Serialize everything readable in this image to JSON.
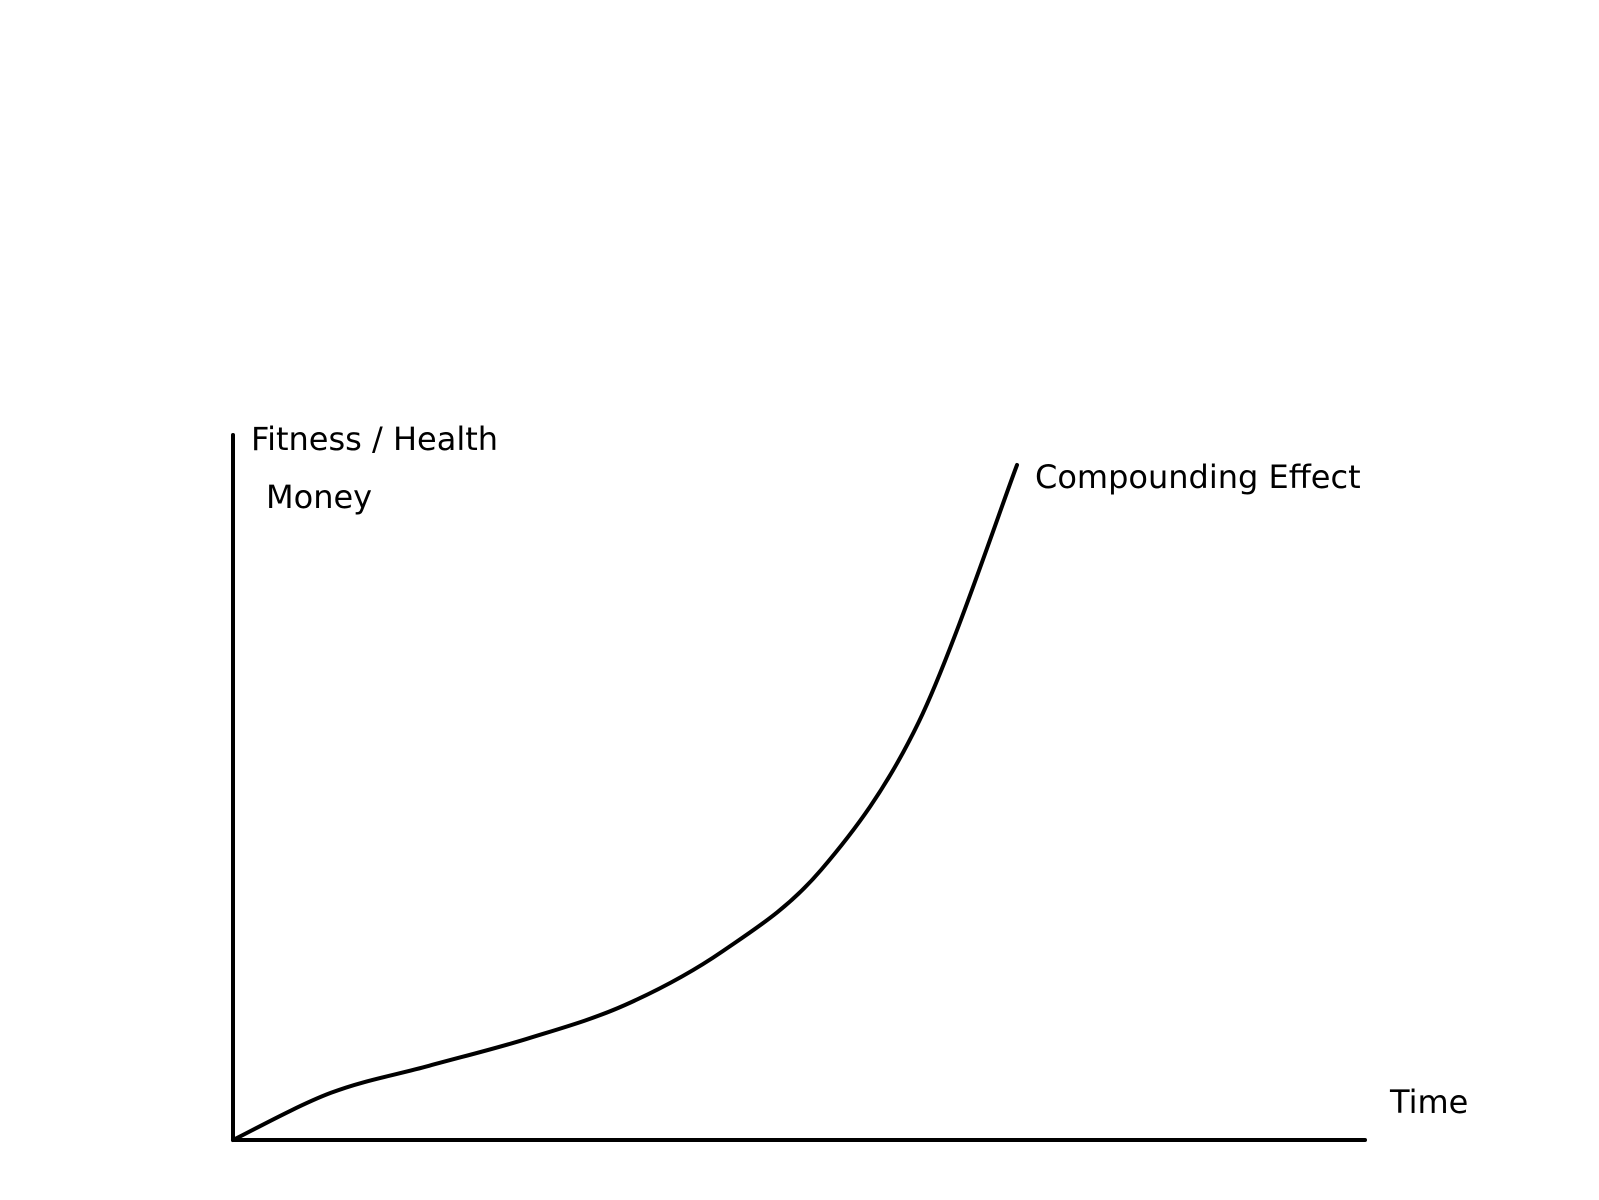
{
  "chart_data": {
    "type": "line",
    "axis_labels": {
      "y": [
        "Fitness / Health",
        "Money"
      ],
      "x": "Time"
    },
    "curve_label": "Compounding Effect",
    "series": [
      {
        "name": "Compounding Effect",
        "points": [
          [
            0,
            0
          ],
          [
            1,
            0.07
          ],
          [
            2,
            0.11
          ],
          [
            3,
            0.15
          ],
          [
            4,
            0.2
          ],
          [
            5,
            0.28
          ],
          [
            6,
            0.4
          ],
          [
            7,
            0.62
          ],
          [
            8,
            1.0
          ]
        ]
      }
    ],
    "xlim": [
      0,
      8
    ],
    "ylim": [
      0,
      1
    ],
    "grid": false,
    "ticks": false,
    "legend": "none",
    "line_color": "#000000"
  }
}
